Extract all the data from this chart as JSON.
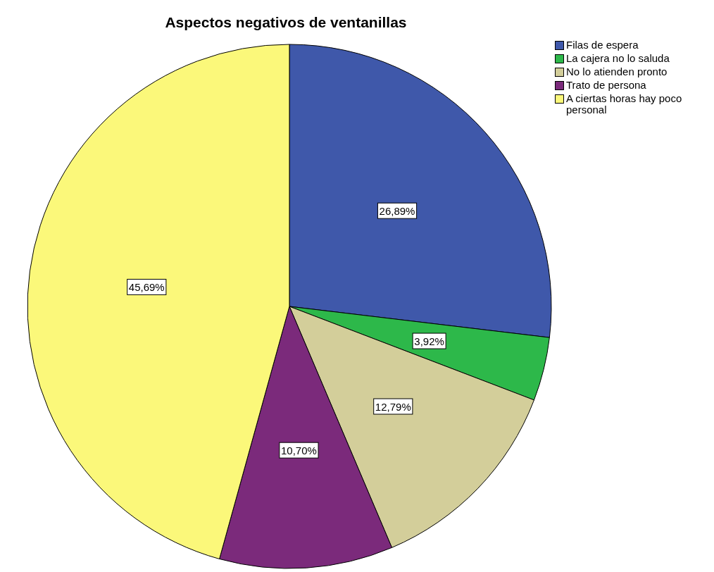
{
  "chart_data": {
    "type": "pie",
    "title": "Aspectos negativos de ventanillas",
    "categories": [
      "Filas de espera",
      "La cajera no lo saluda",
      "No lo atienden pronto",
      "Trato de persona",
      "A ciertas horas hay poco personal"
    ],
    "values": [
      26.89,
      3.92,
      12.79,
      10.7,
      45.69
    ],
    "value_labels": [
      "26,89%",
      "3,92%",
      "12,79%",
      "10,70%",
      "45,69%"
    ],
    "colors": [
      "#3f58aa",
      "#2db84a",
      "#d3ce9a",
      "#7b2a7b",
      "#fbf87a"
    ],
    "legend": "top right"
  }
}
